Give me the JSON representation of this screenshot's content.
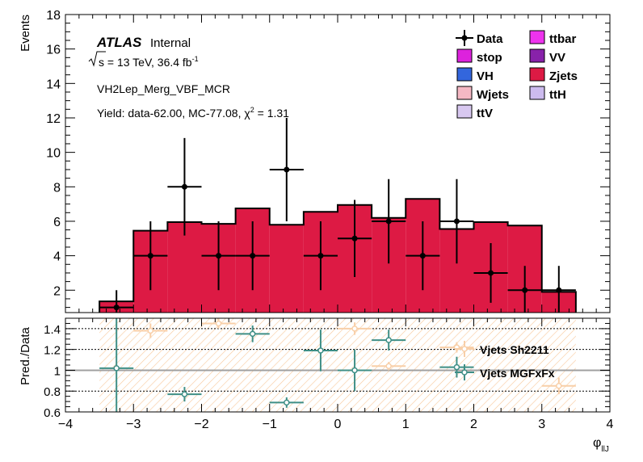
{
  "chart_data": [
    {
      "type": "bar",
      "panel": "main",
      "ylabel": "Events",
      "xlim": [
        -4,
        4
      ],
      "ylim": [
        0.7,
        18
      ],
      "yticks": [
        2,
        4,
        6,
        8,
        10,
        12,
        14,
        16,
        18
      ],
      "annotations": {
        "experiment": "ATLAS",
        "status": "Internal",
        "energy_sqrt": "s",
        "energy_rest": " = 13 TeV, 36.4 fb",
        "energy_sup": "-1",
        "region": "VH2Lep_Merg_VBF_MCR",
        "yield_prefix": "Yield: data-62.00, MC-77.08, χ",
        "yield_sup": "2",
        "yield_suffix": " = 1.31"
      },
      "legend": [
        {
          "label": "Data",
          "style": "marker",
          "color": "#000000"
        },
        {
          "label": "ttbar",
          "style": "box",
          "color": "#ee33ee"
        },
        {
          "label": "stop",
          "style": "box",
          "color": "#dd22dd"
        },
        {
          "label": "VV",
          "style": "box",
          "color": "#8822aa"
        },
        {
          "label": "VH",
          "style": "box",
          "color": "#3366dd"
        },
        {
          "label": "Zjets",
          "style": "box",
          "color": "#dd1a44"
        },
        {
          "label": "Wjets",
          "style": "box",
          "color": "#f5b8c4"
        },
        {
          "label": "ttH",
          "style": "box",
          "color": "#ccbbee"
        },
        {
          "label": "ttV",
          "style": "box",
          "color": "#d8c8f0"
        }
      ],
      "stack": {
        "name": "Zjets",
        "color": "#dd1a44",
        "bin_edges": [
          -3.5,
          -3.0,
          -2.5,
          -2.0,
          -1.5,
          -1.0,
          -0.5,
          0.0,
          0.5,
          1.0,
          1.5,
          2.0,
          2.5,
          3.0,
          3.5
        ],
        "values": [
          1.35,
          5.45,
          5.95,
          5.85,
          6.75,
          5.8,
          6.55,
          6.95,
          6.2,
          7.3,
          5.55,
          5.95,
          5.75,
          1.9
        ]
      },
      "data_points": {
        "name": "Data",
        "x": [
          -3.25,
          -2.75,
          -2.25,
          -1.75,
          -1.25,
          -0.75,
          -0.25,
          0.25,
          0.75,
          1.25,
          1.75,
          2.25,
          2.75,
          3.25
        ],
        "y": [
          1,
          4,
          8,
          4,
          4,
          9,
          4,
          5,
          6,
          4,
          6,
          3,
          2,
          2
        ],
        "yerr": [
          1.0,
          2.0,
          2.83,
          2.0,
          2.0,
          3.0,
          2.0,
          2.24,
          2.45,
          2.0,
          2.45,
          1.73,
          1.41,
          1.41
        ],
        "xerr": 0.25
      }
    },
    {
      "type": "scatter",
      "panel": "ratio",
      "ylabel": "Pred./Data",
      "xlabel_main": "φ",
      "xlabel_sub": "llJ",
      "xlim": [
        -4,
        4
      ],
      "ylim": [
        0.6,
        1.5
      ],
      "xticks": [
        -4,
        -3,
        -2,
        -1,
        0,
        1,
        2,
        3,
        4
      ],
      "yticks": [
        0.6,
        0.8,
        1.0,
        1.2,
        1.4
      ],
      "ytick_labels": [
        "0.6",
        "0.8",
        "1",
        "1.2",
        "1.4"
      ],
      "reference_line": 1,
      "dashed_gridlines": [
        0.8,
        1.2,
        1.4
      ],
      "uncertainty_band": {
        "x_range": [
          -3.5,
          3.5
        ],
        "y_range": [
          0.6,
          1.5
        ],
        "color": "#f8c89a"
      },
      "series": [
        {
          "name": "Vjets Sh2211",
          "color": "#f8cfa8",
          "x": [
            -2.75,
            -1.75,
            0.25,
            0.75,
            1.75,
            3.25
          ],
          "y": [
            1.38,
            1.45,
            1.4,
            1.04,
            1.22,
            0.85
          ],
          "yerr": [
            0.07,
            0.05,
            0.06,
            0.04,
            0.05,
            0.08
          ],
          "xerr": 0.25
        },
        {
          "name": "Vjets MGFxFx",
          "color": "#3f8f86",
          "x": [
            -3.25,
            -2.25,
            -1.25,
            -0.75,
            -0.25,
            0.25,
            0.75,
            1.75
          ],
          "y": [
            1.02,
            0.77,
            1.35,
            0.69,
            1.19,
            1.0,
            1.29,
            1.03
          ],
          "yerr": [
            0.5,
            0.07,
            0.08,
            0.05,
            0.2,
            0.2,
            0.1,
            0.1
          ],
          "xerr": 0.25
        }
      ]
    }
  ]
}
